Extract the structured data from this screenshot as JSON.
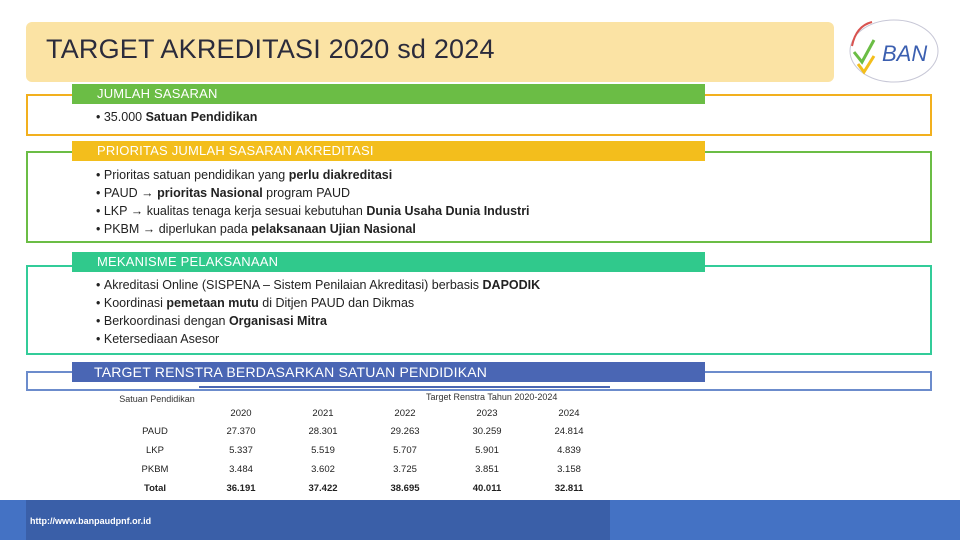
{
  "slide": {
    "title": "TARGET AKREDITASI 2020 sd 2024",
    "logo_text": "BAN",
    "footer_url": "http://www.banpaudpnf.or.id"
  },
  "sections": {
    "sasaran": {
      "header": "JUMLAH SASARAN",
      "items": [
        {
          "pre": "35.000 ",
          "bold": "Satuan Pendidikan",
          "post": ""
        }
      ]
    },
    "prioritas": {
      "header": "PRIORITAS JUMLAH SASARAN AKREDITASI",
      "items": [
        {
          "pre": "Prioritas satuan pendidikan yang ",
          "bold": "perlu diakreditasi",
          "post": ""
        },
        {
          "pre": "PAUD → ",
          "bold": "prioritas Nasional",
          "post": " program PAUD"
        },
        {
          "pre": "LKP → kualitas tenaga kerja sesuai kebutuhan ",
          "bold": "Dunia Usaha Dunia Industri",
          "post": ""
        },
        {
          "pre": "PKBM → diperlukan pada ",
          "bold": "pelaksanaan Ujian Nasional",
          "post": ""
        }
      ]
    },
    "mekanisme": {
      "header": "MEKANISME PELAKSANAAN",
      "items": [
        {
          "pre": "Akreditasi Online (SISPENA – Sistem Penilaian Akreditasi) berbasis ",
          "bold": "DAPODIK",
          "post": ""
        },
        {
          "pre": "Koordinasi ",
          "bold": "pemetaan mutu",
          "post": " di Ditjen PAUD dan Dikmas"
        },
        {
          "pre": "Berkoordinasi dengan ",
          "bold": "Organisasi Mitra",
          "post": ""
        },
        {
          "pre": "Ketersediaan Asesor",
          "bold": "",
          "post": ""
        }
      ]
    },
    "renstra": {
      "header": "TARGET RENSTRA BERDASARKAN SATUAN PENDIDIKAN"
    }
  },
  "table": {
    "col_label": "Satuan Pendidikan",
    "group_label": "Target Renstra Tahun 2020-2024",
    "years": [
      "2020",
      "2021",
      "2022",
      "2023",
      "2024"
    ],
    "rows": [
      {
        "label": "PAUD",
        "values": [
          "27.370",
          "28.301",
          "29.263",
          "30.259",
          "24.814"
        ]
      },
      {
        "label": "LKP",
        "values": [
          "5.337",
          "5.519",
          "5.707",
          "5.901",
          "4.839"
        ]
      },
      {
        "label": "PKBM",
        "values": [
          "3.484",
          "3.602",
          "3.725",
          "3.851",
          "3.158"
        ]
      }
    ],
    "total": {
      "label": "Total",
      "values": [
        "36.191",
        "37.422",
        "38.695",
        "40.011",
        "32.811"
      ]
    }
  },
  "colors": {
    "title_bg": "#fbe3a4",
    "green": "#6bbd45",
    "yellow": "#f3be1c",
    "teal": "#30c98c",
    "blue": "#4a66b4",
    "footer": "#4472c4"
  }
}
